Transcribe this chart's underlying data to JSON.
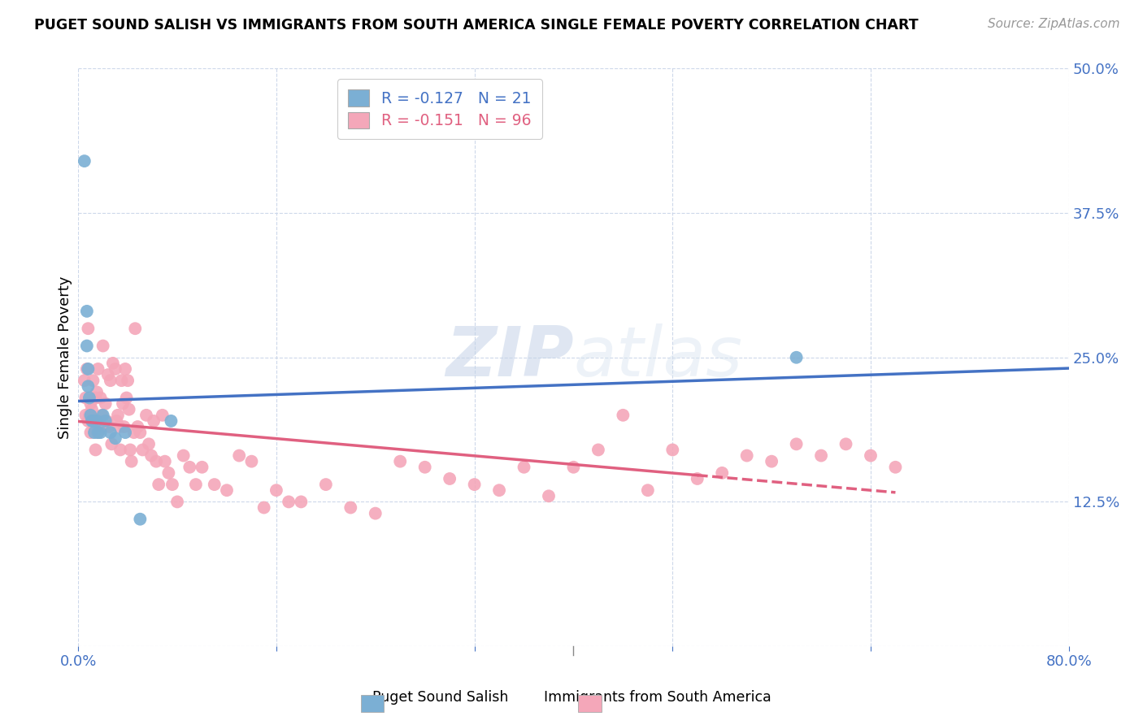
{
  "title": "PUGET SOUND SALISH VS IMMIGRANTS FROM SOUTH AMERICA SINGLE FEMALE POVERTY CORRELATION CHART",
  "source": "Source: ZipAtlas.com",
  "ylabel": "Single Female Poverty",
  "xlim": [
    0.0,
    0.8
  ],
  "ylim": [
    0.0,
    0.5
  ],
  "yticks": [
    0.0,
    0.125,
    0.25,
    0.375,
    0.5
  ],
  "ytick_labels": [
    "",
    "12.5%",
    "25.0%",
    "37.5%",
    "50.0%"
  ],
  "xticks": [
    0.0,
    0.16,
    0.32,
    0.48,
    0.64,
    0.8
  ],
  "xtick_labels": [
    "0.0%",
    "",
    "",
    "",
    "",
    "80.0%"
  ],
  "legend_label1": "R = -0.127   N = 21",
  "legend_label2": "R = -0.151   N = 96",
  "group1_color": "#7bafd4",
  "group2_color": "#f4a7b9",
  "line1_color": "#4472c4",
  "line2_color": "#e06080",
  "watermark": "ZIPatlas",
  "blue_points_x": [
    0.005,
    0.007,
    0.007,
    0.008,
    0.008,
    0.009,
    0.01,
    0.011,
    0.012,
    0.013,
    0.015,
    0.016,
    0.018,
    0.02,
    0.022,
    0.026,
    0.03,
    0.038,
    0.05,
    0.075,
    0.58
  ],
  "blue_points_y": [
    0.42,
    0.29,
    0.26,
    0.24,
    0.225,
    0.215,
    0.2,
    0.195,
    0.195,
    0.185,
    0.195,
    0.185,
    0.185,
    0.2,
    0.195,
    0.185,
    0.18,
    0.185,
    0.11,
    0.195,
    0.25
  ],
  "pink_points_x": [
    0.005,
    0.006,
    0.006,
    0.007,
    0.008,
    0.008,
    0.009,
    0.01,
    0.01,
    0.011,
    0.012,
    0.013,
    0.014,
    0.014,
    0.015,
    0.015,
    0.016,
    0.016,
    0.017,
    0.018,
    0.019,
    0.02,
    0.021,
    0.022,
    0.023,
    0.024,
    0.025,
    0.026,
    0.027,
    0.028,
    0.03,
    0.031,
    0.032,
    0.033,
    0.034,
    0.035,
    0.036,
    0.037,
    0.038,
    0.039,
    0.04,
    0.041,
    0.042,
    0.043,
    0.045,
    0.046,
    0.048,
    0.05,
    0.052,
    0.055,
    0.057,
    0.059,
    0.061,
    0.063,
    0.065,
    0.068,
    0.07,
    0.073,
    0.076,
    0.08,
    0.085,
    0.09,
    0.095,
    0.1,
    0.11,
    0.12,
    0.13,
    0.14,
    0.15,
    0.16,
    0.17,
    0.18,
    0.2,
    0.22,
    0.24,
    0.26,
    0.28,
    0.3,
    0.32,
    0.34,
    0.36,
    0.38,
    0.4,
    0.42,
    0.44,
    0.46,
    0.48,
    0.5,
    0.52,
    0.54,
    0.56,
    0.58,
    0.6,
    0.62,
    0.64,
    0.66
  ],
  "pink_points_y": [
    0.23,
    0.215,
    0.2,
    0.24,
    0.275,
    0.195,
    0.2,
    0.21,
    0.185,
    0.205,
    0.23,
    0.19,
    0.215,
    0.17,
    0.22,
    0.195,
    0.24,
    0.185,
    0.195,
    0.215,
    0.2,
    0.26,
    0.19,
    0.21,
    0.195,
    0.235,
    0.19,
    0.23,
    0.175,
    0.245,
    0.24,
    0.195,
    0.2,
    0.19,
    0.17,
    0.23,
    0.21,
    0.19,
    0.24,
    0.215,
    0.23,
    0.205,
    0.17,
    0.16,
    0.185,
    0.275,
    0.19,
    0.185,
    0.17,
    0.2,
    0.175,
    0.165,
    0.195,
    0.16,
    0.14,
    0.2,
    0.16,
    0.15,
    0.14,
    0.125,
    0.165,
    0.155,
    0.14,
    0.155,
    0.14,
    0.135,
    0.165,
    0.16,
    0.12,
    0.135,
    0.125,
    0.125,
    0.14,
    0.12,
    0.115,
    0.16,
    0.155,
    0.145,
    0.14,
    0.135,
    0.155,
    0.13,
    0.155,
    0.17,
    0.2,
    0.135,
    0.17,
    0.145,
    0.15,
    0.165,
    0.16,
    0.175,
    0.165,
    0.175,
    0.165,
    0.155
  ]
}
